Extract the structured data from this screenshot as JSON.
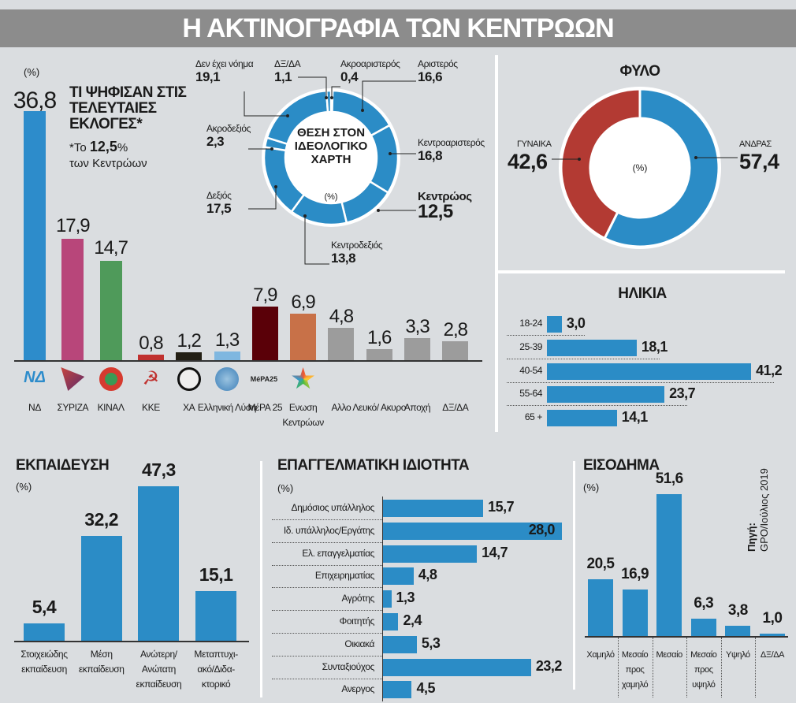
{
  "title": "Η ΑΚΤΙΝΟΓΡΑΦΙΑ ΤΩΝ ΚΕΝΤΡΩΩΝ",
  "source": {
    "label": "Πηγή:",
    "text": "GPO/Ιούλιος 2019"
  },
  "colors": {
    "blue": "#2b8cc6",
    "red": "#b33a33",
    "grey": "#9c9c9c",
    "title_bg": "#8c8c8c"
  },
  "chart_data": [
    {
      "type": "bar",
      "title": "ΤΙ ΨΗΦΙΣΑΝ ΣΤΙΣ ΤΕΛΕΥΤΑΙΕΣ ΕΚΛΟΓΕΣ*",
      "unit": "(%)",
      "note": {
        "prefix": "*Το",
        "value": "12,5",
        "suffix": "%",
        "line2": "των Κεντρώων"
      },
      "categories": [
        "ΝΔ",
        "ΣΥΡΙΖΑ",
        "ΚΙΝΑΛ",
        "ΚΚΕ",
        "ΧΑ",
        "Ελληνική Λύση",
        "ΜέΡΑ 25",
        "Ενωση Κεντρώων",
        "Αλλο",
        "Λευκό/ Ακυρο",
        "Αποχή",
        "ΔΞ/ΔΑ"
      ],
      "values": [
        36.8,
        17.9,
        14.7,
        0.8,
        1.2,
        1.3,
        7.9,
        6.9,
        4.8,
        1.6,
        3.3,
        2.8
      ],
      "labels": [
        "36,8",
        "17,9",
        "14,7",
        "0,8",
        "1,2",
        "1,3",
        "7,9",
        "6,9",
        "4,8",
        "1,6",
        "3,3",
        "2,8"
      ],
      "colors": [
        "#2d8ccb",
        "#b8467a",
        "#4f9a5a",
        "#c0312f",
        "#231f14",
        "#7fb7e0",
        "#5a0008",
        "#c87148",
        "#9c9c9c",
        "#9c9c9c",
        "#9c9c9c",
        "#9c9c9c"
      ],
      "icons": [
        "nd-logo-icon",
        "syriza-logo-icon",
        "kinal-logo-icon",
        "kke-logo-icon",
        "xa-logo-icon",
        "elliniki-lysi-logo-icon",
        "mera25-logo-icon",
        "enosi-kentroon-logo-icon",
        "",
        "",
        "",
        ""
      ],
      "mera_logo_text": "MéPA25"
    },
    {
      "type": "pie",
      "title": "ΘΕΣΗ ΣΤΟΝ ΙΔΕΟΛΟΓΙΚΟ ΧΑΡΤΗ",
      "unit": "(%)",
      "categories": [
        "Ακροαριστερός",
        "Αριστερός",
        "Κεντροαριστερός",
        "Κεντρώος",
        "Κεντροδεξιός",
        "Δεξιός",
        "Ακροδεξιός",
        "Δεν έχει νόημα",
        "ΔΞ/ΔΑ"
      ],
      "values": [
        0.4,
        16.6,
        16.8,
        12.5,
        13.8,
        17.5,
        2.3,
        19.1,
        1.1
      ],
      "labels": [
        "0,4",
        "16,6",
        "16,8",
        "12,5",
        "13,8",
        "17,5",
        "2,3",
        "19,1",
        "1,1"
      ]
    },
    {
      "type": "pie",
      "title": "ΦΥΛΟ",
      "unit": "(%)",
      "categories": [
        "ΑΝΔΡΑΣ",
        "ΓΥΝΑΙΚΑ"
      ],
      "values": [
        57.4,
        42.6
      ],
      "labels": [
        "57,4",
        "42,6"
      ],
      "colors": [
        "#2b8cc6",
        "#b33a33"
      ]
    },
    {
      "type": "bar",
      "orientation": "horizontal",
      "title": "ΗΛΙΚΙΑ",
      "categories": [
        "18-24",
        "25-39",
        "40-54",
        "55-64",
        "65 +"
      ],
      "values": [
        3.0,
        18.1,
        41.2,
        23.7,
        14.1
      ],
      "labels": [
        "3,0",
        "18,1",
        "41,2",
        "23,7",
        "14,1"
      ]
    },
    {
      "type": "bar",
      "title": "ΕΚΠΑΙΔΕΥΣΗ",
      "unit": "(%)",
      "categories": [
        "Στοιχειώδης εκπαίδευση",
        "Μέση εκπαίδευση",
        "Ανώτερη/ Ανώτατη εκπαίδευση",
        "Μεταπτυχι- ακό/Διδα- κτορικό"
      ],
      "values": [
        5.4,
        32.2,
        47.3,
        15.1
      ],
      "labels": [
        "5,4",
        "32,2",
        "47,3",
        "15,1"
      ]
    },
    {
      "type": "bar",
      "orientation": "horizontal",
      "title": "ΕΠΑΓΓΕΛΜΑΤΙΚΗ ΙΔΙΟΤΗΤΑ",
      "unit": "(%)",
      "categories": [
        "Δημόσιος υπάλληλος",
        "Ιδ. υπάλληλος/Εργάτης",
        "Ελ. επαγγελματίας",
        "Επιχειρηματίας",
        "Αγρότης",
        "Φοιτητής",
        "Οικιακά",
        "Συνταξιούχος",
        "Ανεργος"
      ],
      "values": [
        15.7,
        28.0,
        14.7,
        4.8,
        1.3,
        2.4,
        5.3,
        23.2,
        4.5
      ],
      "labels": [
        "15,7",
        "28,0",
        "14,7",
        "4,8",
        "1,3",
        "2,4",
        "5,3",
        "23,2",
        "4,5"
      ]
    },
    {
      "type": "bar",
      "title": "ΕΙΣΟΔΗΜΑ",
      "unit": "(%)",
      "categories": [
        "Χαμηλό",
        "Μεσαίο προς χαμηλό",
        "Μεσαίο",
        "Μεσαίο προς υψηλό",
        "Υψηλό",
        "ΔΞ/ΔΑ"
      ],
      "values": [
        20.5,
        16.9,
        51.6,
        6.3,
        3.8,
        1.0
      ],
      "labels": [
        "20,5",
        "16,9",
        "51,6",
        "6,3",
        "3,8",
        "1,0"
      ]
    }
  ]
}
